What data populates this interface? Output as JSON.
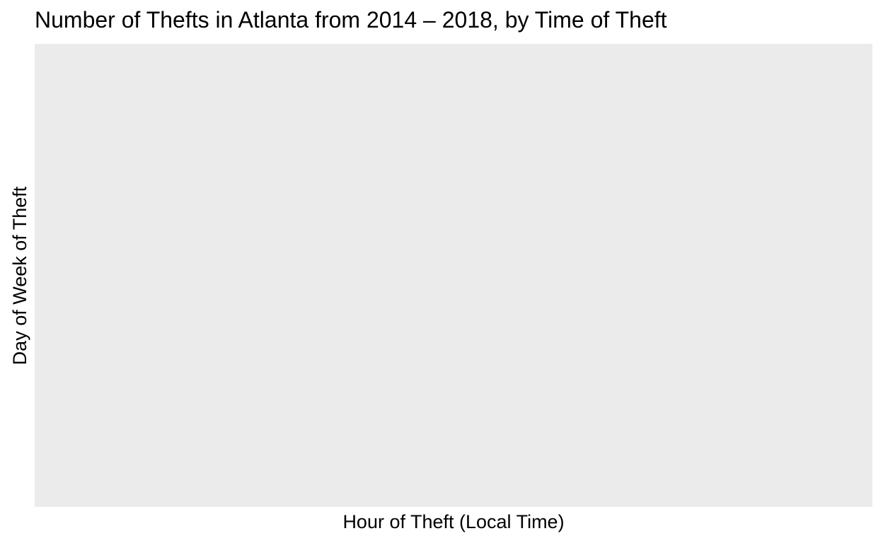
{
  "chart_data": {
    "type": "heatmap",
    "title": "Number of Thefts in Atlanta from 2014 – 2018, by Time of Theft",
    "xlabel": "Hour of Theft (Local Time)",
    "ylabel": "Day of Week of Theft",
    "x_ticks": [],
    "y_ticks": [],
    "cells": [],
    "grid": false,
    "legend": "none",
    "colors": {
      "panel_background": "#ebebeb",
      "text": "#000000"
    }
  }
}
